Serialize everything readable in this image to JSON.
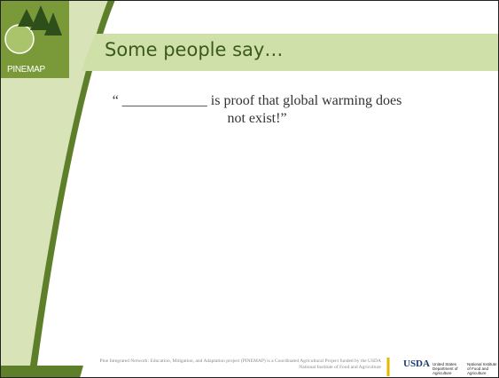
{
  "logo": {
    "label": "PINEMAP"
  },
  "header": {
    "title": "Some people say…"
  },
  "body": {
    "quote": "“ ____________ is proof that global warming does not exist!”"
  },
  "footer": {
    "credit": "Pine Integrated Network: Education, Mitigation, and Adaptation project (PINEMAP) is a Coordinated Agricultural Project funded by the USDA National Institute of Food and Agriculture",
    "usda": {
      "mark": "USDA",
      "department": "United States Department of Agriculture",
      "institute": "National Institute of Food and Agriculture"
    }
  }
}
